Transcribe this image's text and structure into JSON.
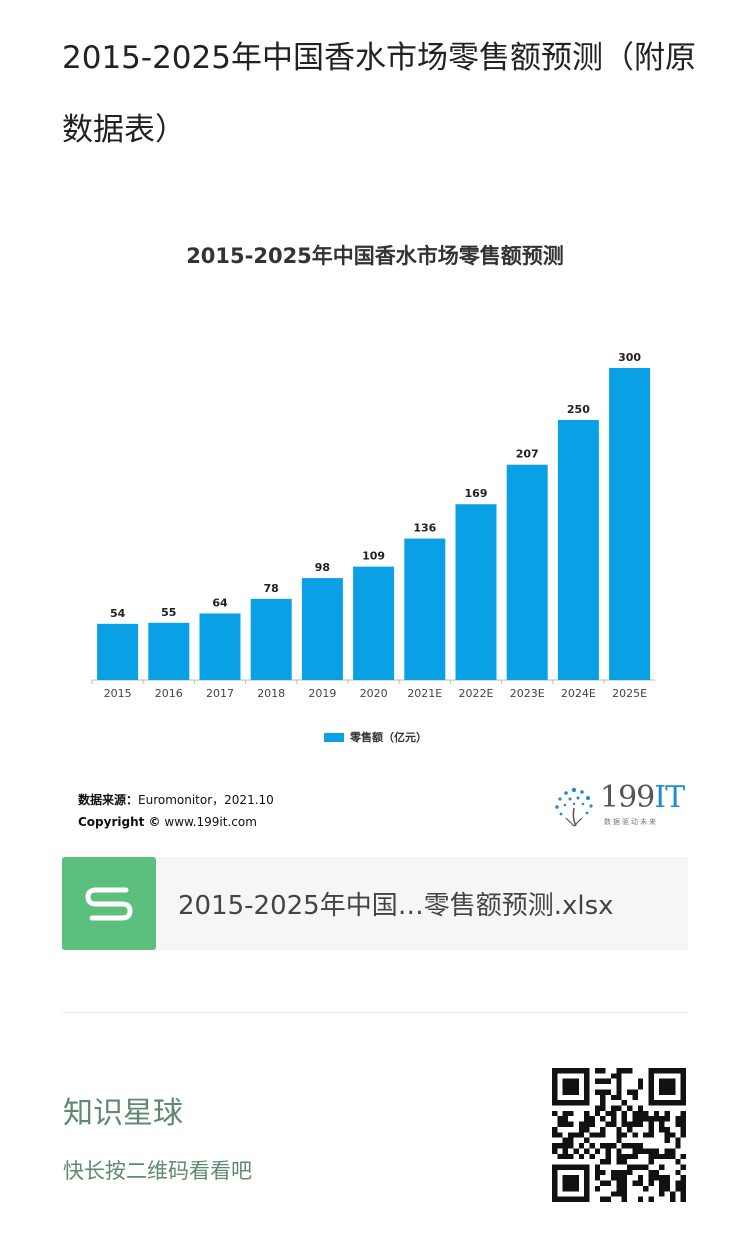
{
  "page": {
    "title": "2015-2025年中国香水市场零售额预测（附原数据表）"
  },
  "chart_data": {
    "type": "bar",
    "title": "2015-2025年中国香水市场零售额预测",
    "categories": [
      "2015",
      "2016",
      "2017",
      "2018",
      "2019",
      "2020",
      "2021E",
      "2022E",
      "2023E",
      "2024E",
      "2025E"
    ],
    "series": [
      {
        "name": "零售额（亿元）",
        "values": [
          54,
          55,
          64,
          78,
          98,
          109,
          136,
          169,
          207,
          250,
          300
        ]
      }
    ],
    "ylim": [
      0,
      300
    ],
    "grid": false,
    "legend": "bottom-center",
    "bar_color": "#0aa0e6"
  },
  "source": {
    "label": "数据来源：",
    "text": "Euromonitor，2021.10",
    "copyright_label": "Copyright ©",
    "copyright_text": "www.199it.com"
  },
  "logo": {
    "text_num": "199",
    "text_it": "IT",
    "sub": "数据驱动未来"
  },
  "file": {
    "name": "2015-2025年中国…零售额预测.xlsx",
    "icon": "spreadsheet-s-icon",
    "icon_color": "#5dbf7e"
  },
  "footer": {
    "title": "知识星球",
    "subtitle": "快长按二维码看看吧",
    "color": "#5f8a70"
  }
}
